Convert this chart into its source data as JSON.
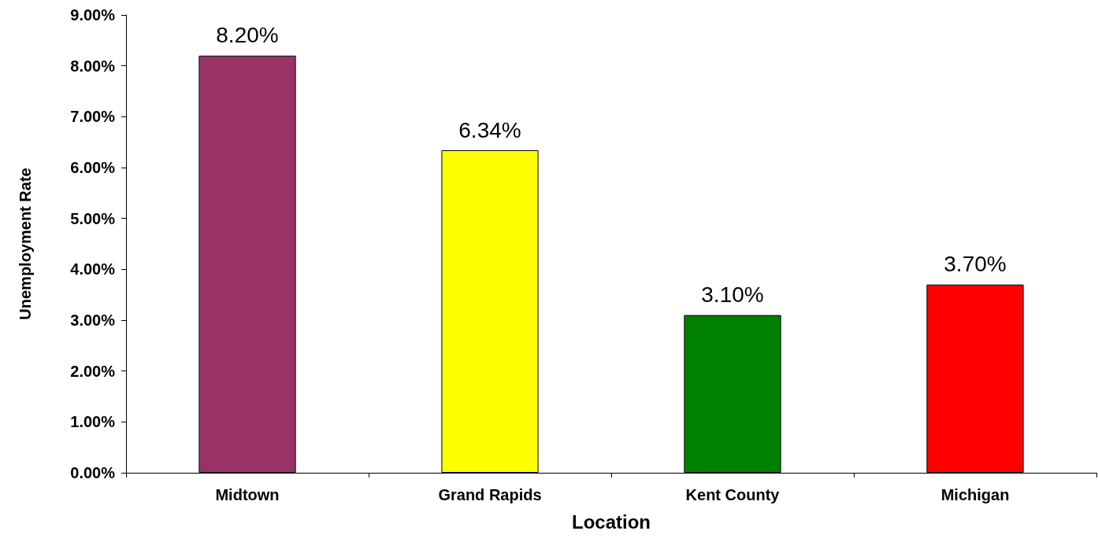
{
  "chart_data": {
    "type": "bar",
    "xlabel": "Location",
    "ylabel": "Unemployment Rate",
    "categories": [
      "Midtown",
      "Grand Rapids",
      "Kent County",
      "Michigan"
    ],
    "values": [
      8.2,
      6.34,
      3.1,
      3.7
    ],
    "colors": [
      "#993366",
      "#ffff00",
      "#008000",
      "#ff0000"
    ],
    "value_labels": [
      "8.20%",
      "6.34%",
      "3.10%",
      "3.70%"
    ],
    "ylim": [
      0,
      9
    ],
    "yticks": [
      {
        "value": 0,
        "label": "0.00%"
      },
      {
        "value": 1,
        "label": "1.00%"
      },
      {
        "value": 2,
        "label": "2.00%"
      },
      {
        "value": 3,
        "label": "3.00%"
      },
      {
        "value": 4,
        "label": "4.00%"
      },
      {
        "value": 5,
        "label": "5.00%"
      },
      {
        "value": 6,
        "label": "6.00%"
      },
      {
        "value": 7,
        "label": "7.00%"
      },
      {
        "value": 8,
        "label": "8.00%"
      },
      {
        "value": 9,
        "label": "9.00%"
      }
    ],
    "grid": false
  }
}
